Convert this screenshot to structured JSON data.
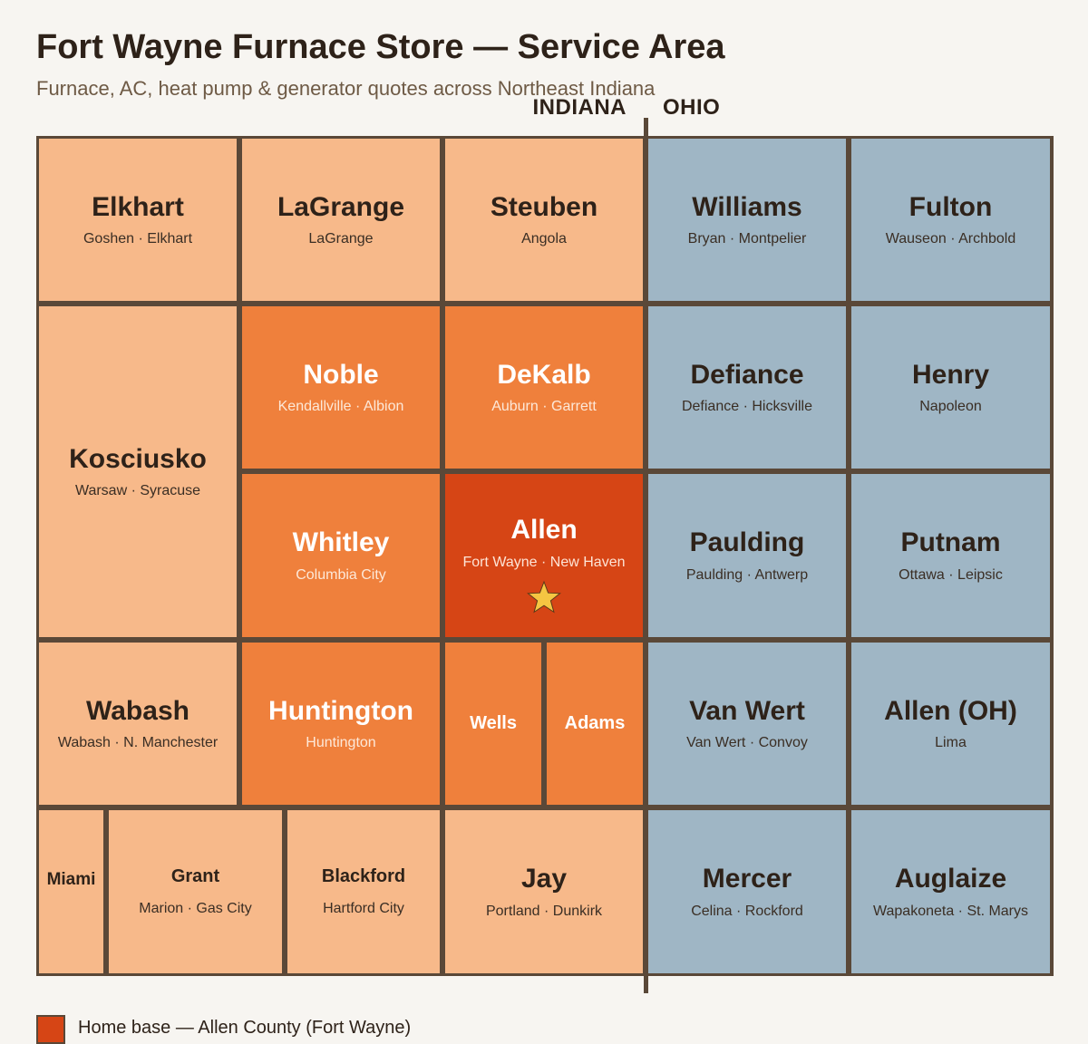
{
  "title": "Fort Wayne Furnace Store — Service Area",
  "subtitle": "Furnace, AC, heat pump & generator quotes across Northeast Indiana",
  "states": {
    "indiana": "INDIANA",
    "ohio": "OHIO"
  },
  "colors": {
    "border": "#5a4838",
    "light_orange": "#f7b98a",
    "orange": "#ef803c",
    "home_base": "#d64515",
    "ohio_blue": "#9fb6c5",
    "star": "#f5c542"
  },
  "counties": {
    "elkhart": {
      "name": "Elkhart",
      "towns": "Goshen · Elkhart"
    },
    "lagrange": {
      "name": "LaGrange",
      "towns": "LaGrange"
    },
    "steuben": {
      "name": "Steuben",
      "towns": "Angola"
    },
    "williams": {
      "name": "Williams",
      "towns": "Bryan · Montpelier"
    },
    "fulton": {
      "name": "Fulton",
      "towns": "Wauseon · Archbold"
    },
    "kosciusko": {
      "name": "Kosciusko",
      "towns": "Warsaw · Syracuse"
    },
    "noble": {
      "name": "Noble",
      "towns": "Kendallville · Albion"
    },
    "dekalb": {
      "name": "DeKalb",
      "towns": "Auburn · Garrett"
    },
    "defiance": {
      "name": "Defiance",
      "towns": "Defiance · Hicksville"
    },
    "henry": {
      "name": "Henry",
      "towns": "Napoleon"
    },
    "whitley": {
      "name": "Whitley",
      "towns": "Columbia City"
    },
    "allen": {
      "name": "Allen",
      "towns": "Fort Wayne · New Haven",
      "icon": "star-icon"
    },
    "paulding": {
      "name": "Paulding",
      "towns": "Paulding · Antwerp"
    },
    "putnam": {
      "name": "Putnam",
      "towns": "Ottawa · Leipsic"
    },
    "wabash": {
      "name": "Wabash",
      "towns": "Wabash · N. Manchester"
    },
    "huntington": {
      "name": "Huntington",
      "towns": "Huntington"
    },
    "wells": {
      "name": "Wells"
    },
    "adams": {
      "name": "Adams"
    },
    "vanwert": {
      "name": "Van Wert",
      "towns": "Van Wert · Convoy"
    },
    "allen_oh": {
      "name": "Allen (OH)",
      "towns": "Lima"
    },
    "miami": {
      "name": "Miami"
    },
    "grant": {
      "name": "Grant",
      "towns": "Marion · Gas City"
    },
    "blackford": {
      "name": "Blackford",
      "towns": "Hartford City"
    },
    "jay": {
      "name": "Jay",
      "towns": "Portland · Dunkirk"
    },
    "mercer": {
      "name": "Mercer",
      "towns": "Celina · Rockford"
    },
    "auglaize": {
      "name": "Auglaize",
      "towns": "Wapakoneta · St. Marys"
    }
  },
  "legend": {
    "label": "Home base — Allen County (Fort Wayne)",
    "color": "#d64515"
  }
}
